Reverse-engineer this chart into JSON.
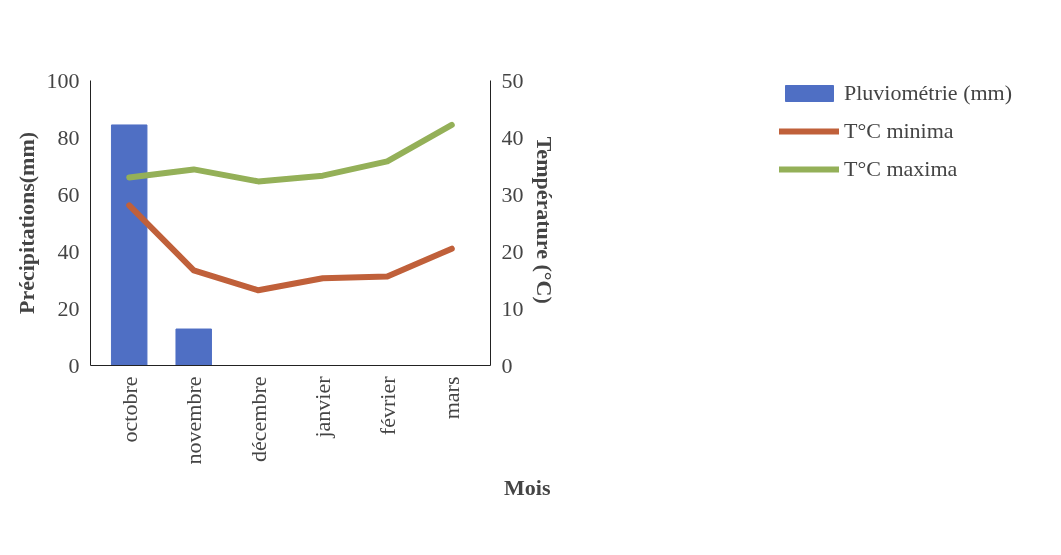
{
  "chart_data": {
    "type": "bar",
    "categories": [
      "octobre",
      "novembre",
      "décembre",
      "janvier",
      "février",
      "mars"
    ],
    "xlabel": "Mois",
    "ylabel": "Précipitations(mm)",
    "y2label": "Température  (°C)",
    "ylim": [
      0,
      100
    ],
    "yticks": [
      0,
      20,
      40,
      60,
      80,
      100
    ],
    "y2lim": [
      0,
      50
    ],
    "y2ticks": [
      0,
      10,
      20,
      30,
      40,
      50
    ],
    "series": [
      {
        "name": "Pluviométrie (mm)",
        "type": "bar",
        "color": "#4f6fc4",
        "values": [
          84.4,
          12.8,
          0,
          0,
          0,
          0
        ]
      },
      {
        "name": "T°C minima",
        "type": "line",
        "axis": "y2",
        "color": "#c0603a",
        "values": [
          28.1,
          16.7,
          13.2,
          15.3,
          15.6,
          20.5
        ]
      },
      {
        "name": "T°C maxima",
        "type": "line",
        "axis": "y2",
        "color": "#94b058",
        "values": [
          33.0,
          34.4,
          32.3,
          33.3,
          35.8,
          42.2
        ]
      }
    ],
    "legend": "right",
    "grid": false
  }
}
